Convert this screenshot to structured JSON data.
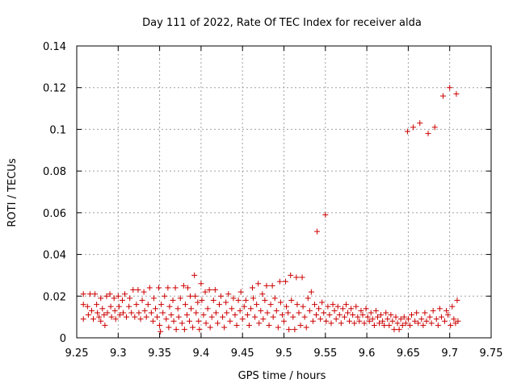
{
  "chart_data": {
    "type": "scatter",
    "title": "Day 111 of 2022, Rate Of TEC Index for receiver alda",
    "xlabel": "GPS time / hours",
    "ylabel": "ROTI / TECUs",
    "xlim": [
      9.25,
      9.75
    ],
    "ylim": [
      0,
      0.14
    ],
    "xticks": [
      "9.25",
      "9.3",
      "9.35",
      "9.4",
      "9.45",
      "9.5",
      "9.55",
      "9.6",
      "9.65",
      "9.7",
      "9.75"
    ],
    "yticks": [
      "0",
      "0.02",
      "0.04",
      "0.06",
      "0.08",
      "0.1",
      "0.12",
      "0.14"
    ],
    "grid": true,
    "marker": "+",
    "color": "#cc0000",
    "series": [
      {
        "name": "ROTI",
        "points": [
          [
            9.258,
            0.021
          ],
          [
            9.258,
            0.016
          ],
          [
            9.258,
            0.009
          ],
          [
            9.263,
            0.015
          ],
          [
            9.264,
            0.011
          ],
          [
            9.266,
            0.021
          ],
          [
            9.268,
            0.013
          ],
          [
            9.27,
            0.009
          ],
          [
            9.272,
            0.021
          ],
          [
            9.274,
            0.016
          ],
          [
            9.275,
            0.012
          ],
          [
            9.277,
            0.01
          ],
          [
            9.279,
            0.019
          ],
          [
            9.279,
            0.008
          ],
          [
            9.281,
            0.014
          ],
          [
            9.283,
            0.011
          ],
          [
            9.284,
            0.006
          ],
          [
            9.286,
            0.02
          ],
          [
            9.287,
            0.012
          ],
          [
            9.29,
            0.021
          ],
          [
            9.291,
            0.015
          ],
          [
            9.292,
            0.01
          ],
          [
            9.295,
            0.019
          ],
          [
            9.296,
            0.013
          ],
          [
            9.297,
            0.009
          ],
          [
            9.3,
            0.02
          ],
          [
            9.301,
            0.015
          ],
          [
            9.302,
            0.011
          ],
          [
            9.305,
            0.018
          ],
          [
            9.306,
            0.012
          ],
          [
            9.308,
            0.021
          ],
          [
            9.31,
            0.01
          ],
          [
            9.313,
            0.015
          ],
          [
            9.314,
            0.019
          ],
          [
            9.316,
            0.012
          ],
          [
            9.318,
            0.023
          ],
          [
            9.32,
            0.01
          ],
          [
            9.322,
            0.016
          ],
          [
            9.324,
            0.023
          ],
          [
            9.325,
            0.012
          ],
          [
            9.327,
            0.009
          ],
          [
            9.329,
            0.018
          ],
          [
            9.331,
            0.022
          ],
          [
            9.332,
            0.013
          ],
          [
            9.334,
            0.01
          ],
          [
            9.336,
            0.016
          ],
          [
            9.338,
            0.024
          ],
          [
            9.34,
            0.012
          ],
          [
            9.342,
            0.008
          ],
          [
            9.343,
            0.019
          ],
          [
            9.345,
            0.014
          ],
          [
            9.347,
            0.01
          ],
          [
            9.349,
            0.024
          ],
          [
            9.35,
            0.006
          ],
          [
            9.351,
            0.003
          ],
          [
            9.352,
            0.016
          ],
          [
            9.354,
            0.012
          ],
          [
            9.356,
            0.02
          ],
          [
            9.358,
            0.009
          ],
          [
            9.36,
            0.024
          ],
          [
            9.361,
            0.005
          ],
          [
            9.362,
            0.015
          ],
          [
            9.364,
            0.011
          ],
          [
            9.366,
            0.018
          ],
          [
            9.367,
            0.008
          ],
          [
            9.369,
            0.024
          ],
          [
            9.37,
            0.004
          ],
          [
            9.372,
            0.014
          ],
          [
            9.373,
            0.01
          ],
          [
            9.375,
            0.019
          ],
          [
            9.377,
            0.007
          ],
          [
            9.379,
            0.025
          ],
          [
            9.38,
            0.004
          ],
          [
            9.381,
            0.016
          ],
          [
            9.383,
            0.011
          ],
          [
            9.384,
            0.024
          ],
          [
            9.386,
            0.008
          ],
          [
            9.387,
            0.02
          ],
          [
            9.388,
            0.014
          ],
          [
            9.39,
            0.005
          ],
          [
            9.392,
            0.03
          ],
          [
            9.393,
            0.02
          ],
          [
            9.394,
            0.012
          ],
          [
            9.396,
            0.017
          ],
          [
            9.397,
            0.008
          ],
          [
            9.398,
            0.004
          ],
          [
            9.4,
            0.026
          ],
          [
            9.401,
            0.018
          ],
          [
            9.403,
            0.011
          ],
          [
            9.405,
            0.022
          ],
          [
            9.406,
            0.007
          ],
          [
            9.408,
            0.014
          ],
          [
            9.41,
            0.023
          ],
          [
            9.411,
            0.005
          ],
          [
            9.413,
            0.01
          ],
          [
            9.415,
            0.018
          ],
          [
            9.417,
            0.023
          ],
          [
            9.418,
            0.012
          ],
          [
            9.42,
            0.007
          ],
          [
            9.422,
            0.016
          ],
          [
            9.424,
            0.02
          ],
          [
            9.426,
            0.01
          ],
          [
            9.428,
            0.005
          ],
          [
            9.43,
            0.017
          ],
          [
            9.431,
            0.012
          ],
          [
            9.433,
            0.021
          ],
          [
            9.435,
            0.008
          ],
          [
            9.437,
            0.014
          ],
          [
            9.439,
            0.019
          ],
          [
            9.441,
            0.011
          ],
          [
            9.443,
            0.006
          ],
          [
            9.445,
            0.018
          ],
          [
            9.447,
            0.013
          ],
          [
            9.448,
            0.022
          ],
          [
            9.45,
            0.009
          ],
          [
            9.452,
            0.015
          ],
          [
            9.454,
            0.018
          ],
          [
            9.456,
            0.011
          ],
          [
            9.458,
            0.006
          ],
          [
            9.46,
            0.014
          ],
          [
            9.462,
            0.024
          ],
          [
            9.463,
            0.019
          ],
          [
            9.465,
            0.01
          ],
          [
            9.467,
            0.016
          ],
          [
            9.469,
            0.026
          ],
          [
            9.47,
            0.007
          ],
          [
            9.472,
            0.013
          ],
          [
            9.474,
            0.021
          ],
          [
            9.475,
            0.009
          ],
          [
            9.477,
            0.018
          ],
          [
            9.479,
            0.025
          ],
          [
            9.48,
            0.012
          ],
          [
            9.482,
            0.006
          ],
          [
            9.484,
            0.016
          ],
          [
            9.486,
            0.025
          ],
          [
            9.487,
            0.01
          ],
          [
            9.489,
            0.019
          ],
          [
            9.491,
            0.013
          ],
          [
            9.493,
            0.005
          ],
          [
            9.495,
            0.027
          ],
          [
            9.496,
            0.017
          ],
          [
            9.498,
            0.011
          ],
          [
            9.5,
            0.008
          ],
          [
            9.502,
            0.027
          ],
          [
            9.503,
            0.015
          ],
          [
            9.505,
            0.012
          ],
          [
            9.506,
            0.004
          ],
          [
            9.508,
            0.03
          ],
          [
            9.509,
            0.018
          ],
          [
            9.511,
            0.01
          ],
          [
            9.513,
            0.004
          ],
          [
            9.515,
            0.029
          ],
          [
            9.516,
            0.016
          ],
          [
            9.518,
            0.012
          ],
          [
            9.52,
            0.006
          ],
          [
            9.522,
            0.029
          ],
          [
            9.523,
            0.015
          ],
          [
            9.525,
            0.01
          ],
          [
            9.527,
            0.005
          ],
          [
            9.529,
            0.019
          ],
          [
            9.531,
            0.013
          ],
          [
            9.533,
            0.022
          ],
          [
            9.535,
            0.008
          ],
          [
            9.537,
            0.016
          ],
          [
            9.539,
            0.011
          ],
          [
            9.54,
            0.051
          ],
          [
            9.542,
            0.014
          ],
          [
            9.544,
            0.009
          ],
          [
            9.546,
            0.017
          ],
          [
            9.548,
            0.012
          ],
          [
            9.55,
            0.059
          ],
          [
            9.551,
            0.008
          ],
          [
            9.553,
            0.015
          ],
          [
            9.555,
            0.011
          ],
          [
            9.557,
            0.007
          ],
          [
            9.559,
            0.016
          ],
          [
            9.561,
            0.013
          ],
          [
            9.563,
            0.009
          ],
          [
            9.565,
            0.015
          ],
          [
            9.567,
            0.011
          ],
          [
            9.569,
            0.007
          ],
          [
            9.571,
            0.014
          ],
          [
            9.573,
            0.01
          ],
          [
            9.575,
            0.016
          ],
          [
            9.577,
            0.012
          ],
          [
            9.579,
            0.008
          ],
          [
            9.581,
            0.014
          ],
          [
            9.583,
            0.011
          ],
          [
            9.585,
            0.007
          ],
          [
            9.587,
            0.015
          ],
          [
            9.589,
            0.01
          ],
          [
            9.591,
            0.008
          ],
          [
            9.593,
            0.013
          ],
          [
            9.595,
            0.011
          ],
          [
            9.597,
            0.007
          ],
          [
            9.599,
            0.014
          ],
          [
            9.601,
            0.01
          ],
          [
            9.603,
            0.008
          ],
          [
            9.605,
            0.012
          ],
          [
            9.607,
            0.009
          ],
          [
            9.609,
            0.006
          ],
          [
            9.611,
            0.013
          ],
          [
            9.613,
            0.01
          ],
          [
            9.615,
            0.007
          ],
          [
            9.617,
            0.011
          ],
          [
            9.619,
            0.008
          ],
          [
            9.621,
            0.006
          ],
          [
            9.623,
            0.012
          ],
          [
            9.625,
            0.009
          ],
          [
            9.627,
            0.006
          ],
          [
            9.629,
            0.011
          ],
          [
            9.631,
            0.008
          ],
          [
            9.633,
            0.004
          ],
          [
            9.635,
            0.01
          ],
          [
            9.637,
            0.007
          ],
          [
            9.639,
            0.004
          ],
          [
            9.641,
            0.009
          ],
          [
            9.643,
            0.006
          ],
          [
            9.645,
            0.01
          ],
          [
            9.647,
            0.007
          ],
          [
            9.649,
            0.099
          ],
          [
            9.65,
            0.009
          ],
          [
            9.652,
            0.006
          ],
          [
            9.654,
            0.011
          ],
          [
            9.656,
            0.101
          ],
          [
            9.658,
            0.008
          ],
          [
            9.66,
            0.012
          ],
          [
            9.662,
            0.007
          ],
          [
            9.664,
            0.103
          ],
          [
            9.666,
            0.009
          ],
          [
            9.668,
            0.006
          ],
          [
            9.67,
            0.012
          ],
          [
            9.672,
            0.008
          ],
          [
            9.674,
            0.098
          ],
          [
            9.676,
            0.01
          ],
          [
            9.678,
            0.007
          ],
          [
            9.68,
            0.013
          ],
          [
            9.682,
            0.101
          ],
          [
            9.684,
            0.009
          ],
          [
            9.686,
            0.006
          ],
          [
            9.688,
            0.014
          ],
          [
            9.69,
            0.01
          ],
          [
            9.692,
            0.116
          ],
          [
            9.694,
            0.008
          ],
          [
            9.696,
            0.013
          ],
          [
            9.698,
            0.011
          ],
          [
            9.7,
            0.12
          ],
          [
            9.701,
            0.006
          ],
          [
            9.703,
            0.015
          ],
          [
            9.705,
            0.009
          ],
          [
            9.707,
            0.007
          ],
          [
            9.708,
            0.117
          ],
          [
            9.709,
            0.018
          ],
          [
            9.71,
            0.008
          ]
        ]
      }
    ]
  }
}
